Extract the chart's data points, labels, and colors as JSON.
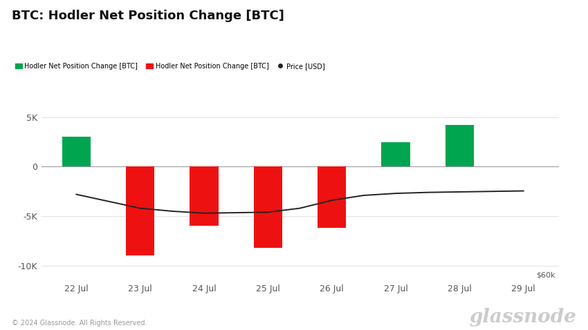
{
  "title": "BTC: Hodler Net Position Change [BTC]",
  "legend_labels": [
    "Hodler Net Position Change [BTC]",
    "Hodler Net Position Change [BTC]",
    "Price [USD]"
  ],
  "legend_colors": [
    "#00a550",
    "#ee1111",
    "#222222"
  ],
  "bar_dates": [
    "22 Jul",
    "23 Jul",
    "24 Jul",
    "25 Jul",
    "26 Jul",
    "27 Jul",
    "28 Jul",
    "29 Jul"
  ],
  "bar_values": [
    3000,
    -9000,
    -6000,
    -8200,
    -6200,
    2500,
    4200,
    null
  ],
  "bar_colors": [
    "#00a550",
    "#ee1111",
    "#ee1111",
    "#ee1111",
    "#ee1111",
    "#00a550",
    "#00a550",
    null
  ],
  "price_line_x": [
    0,
    0.5,
    1,
    1.5,
    2,
    2.5,
    3,
    3.5,
    4,
    4.5,
    5,
    5.5,
    6,
    6.5,
    7
  ],
  "price_line_y": [
    -2800,
    -3500,
    -4200,
    -4500,
    -4700,
    -4650,
    -4600,
    -4200,
    -3400,
    -2900,
    -2700,
    -2600,
    -2550,
    -2500,
    -2450
  ],
  "price_label": "$60k",
  "ylim": [
    -11500,
    7500
  ],
  "yticks": [
    -10000,
    -5000,
    0,
    5000
  ],
  "ytick_labels": [
    "-10K",
    "-5K",
    "0",
    "5K"
  ],
  "xlim_left": -0.55,
  "xlim_right": 7.55,
  "bar_width": 0.45,
  "background_color": "#ffffff",
  "grid_color": "#dddddd",
  "title_fontsize": 13,
  "legend_fontsize": 7,
  "tick_fontsize": 9,
  "footer_text": "© 2024 Glassnode. All Rights Reserved.",
  "watermark_text": "glassnode"
}
